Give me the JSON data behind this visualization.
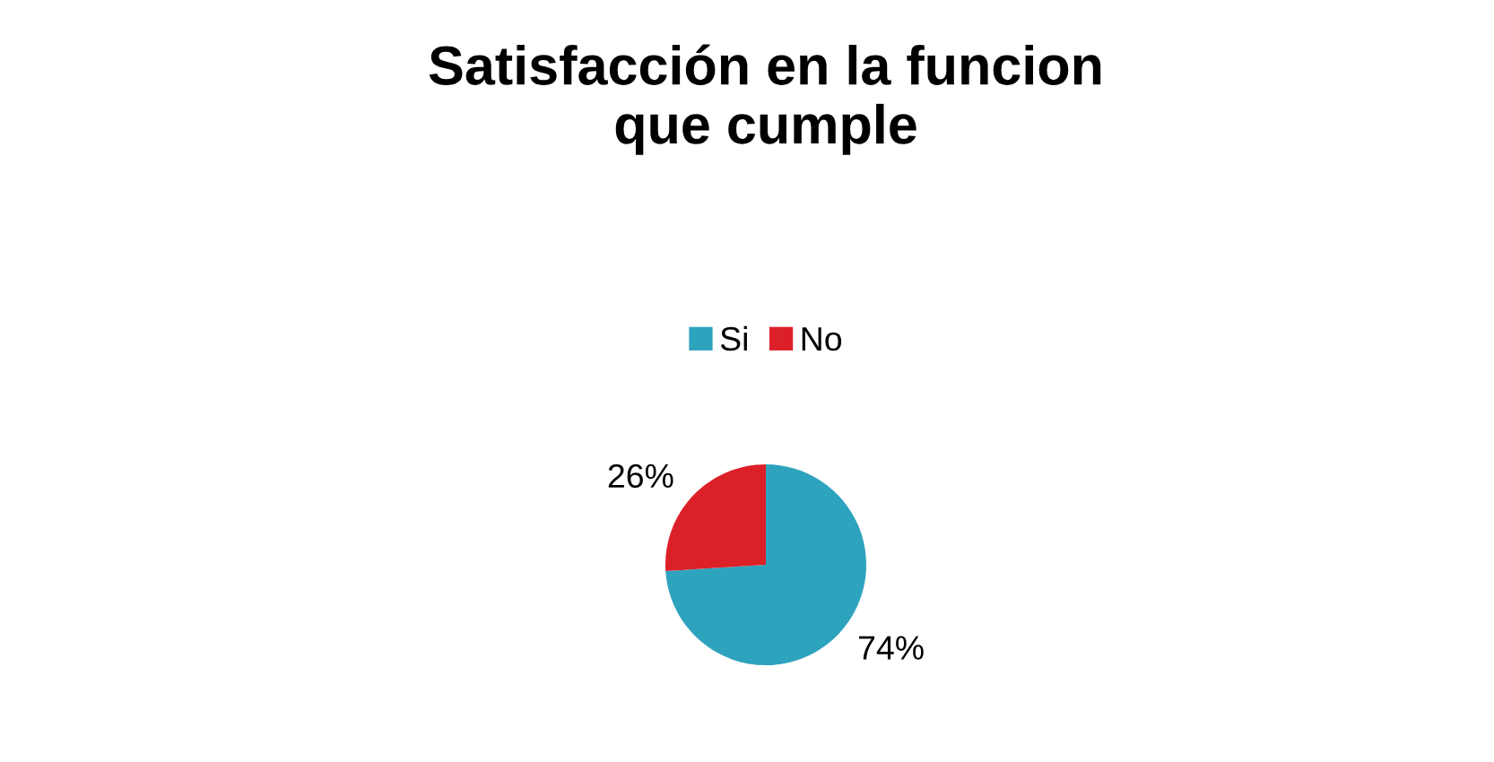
{
  "chart_data": {
    "type": "pie",
    "title": "Satisfacción en la funcion\nque cumple",
    "categories": [
      "Si",
      "No"
    ],
    "series": [
      {
        "values": [
          74,
          26
        ],
        "colors": [
          "#2ea3be",
          "#dc2028"
        ]
      }
    ],
    "value_labels": [
      "74%",
      "26%"
    ],
    "legend": "top"
  }
}
